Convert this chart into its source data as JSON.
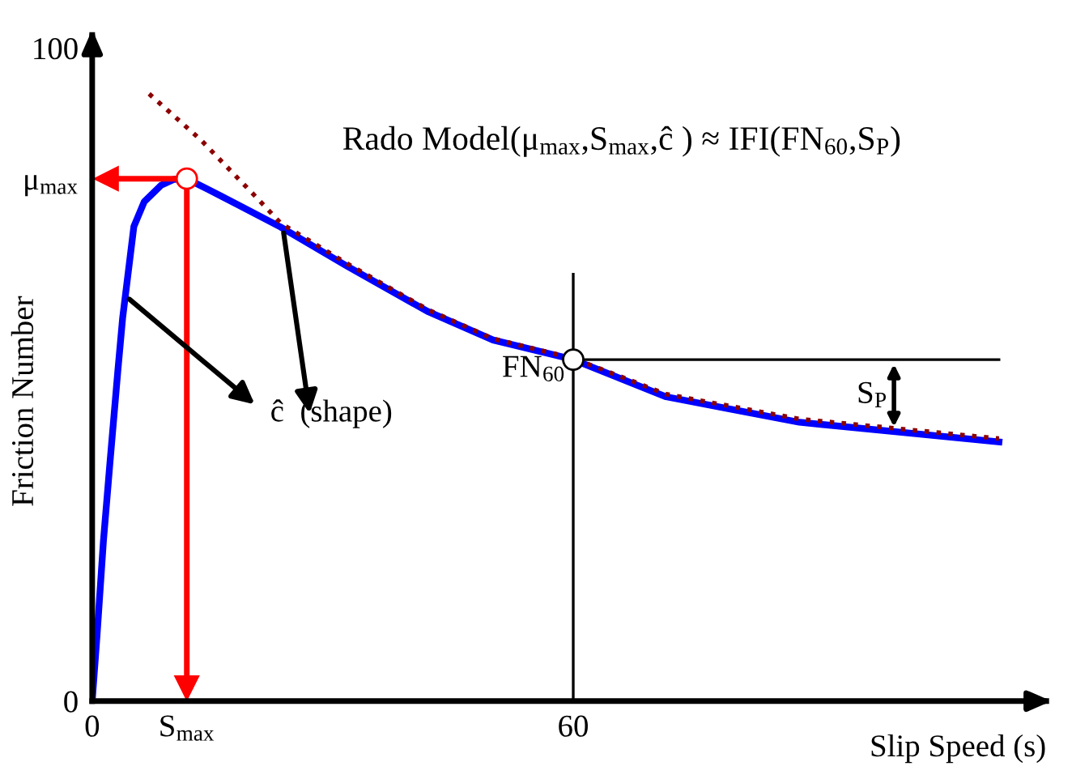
{
  "chart_data": {
    "type": "line",
    "title": "Rado Model(μ$_{max}$,S$_{max}$,ĉ ) ≈ IFI(FN$_{60}$,S$_{P}$)",
    "xlabel": "Slip Speed (s)",
    "ylabel": "Friction Number",
    "xlim": [
      0,
      119
    ],
    "ylim": [
      0,
      102
    ],
    "xticks": [
      0,
      {
        "value": 11.8,
        "label": "S$_{max}$"
      },
      60
    ],
    "yticks": [
      0,
      {
        "value": 80,
        "label": "μ$_{max}$"
      },
      100
    ],
    "marker": "none",
    "series": [
      {
        "color": "#0000ff",
        "line_style": "solid",
        "x": [
          0,
          0.6,
          1.4,
          2.2,
          3.2,
          3.8,
          5.2,
          6.5,
          8.6,
          10.2,
          11.8,
          16,
          23.5,
          31.8,
          41.8,
          50,
          60,
          71.6,
          88.2,
          100.7,
          113.1
        ],
        "values": [
          0,
          10,
          24.5,
          36.3,
          50.6,
          58.7,
          72.7,
          76.5,
          79,
          79.9,
          80,
          77.4,
          72.6,
          66.6,
          59.7,
          55.3,
          52.3,
          46.6,
          42.7,
          41.2,
          39.7
        ]
      },
      {
        "color": "#8b0000",
        "line_style": "dotted",
        "x": [
          7.1,
          13.5,
          20.2,
          23.5,
          31.8,
          41.8,
          50,
          60,
          71.6,
          88.2,
          100.7,
          113.1
        ],
        "values": [
          93,
          86,
          77.5,
          73.2,
          67,
          60,
          55.5,
          52.5,
          47,
          43.2,
          41.7,
          40.2
        ]
      }
    ],
    "ref_lines": [
      {
        "axis": "x",
        "value": 11.8,
        "color": "#ff0000"
      },
      {
        "axis": "y",
        "value": 80,
        "color": "#ff0000"
      },
      {
        "axis": "x",
        "value": 60,
        "color": "#000000"
      },
      {
        "axis": "y",
        "value": 52.3,
        "color": "#000000"
      }
    ],
    "annotations": [
      {
        "text": "FN$_{60}$",
        "x": 60,
        "y": 52.3
      },
      {
        "text": "S$_{P}$",
        "x": 100,
        "y": 52.3
      },
      {
        "text": "ĉ  (shape)",
        "x": 4.2,
        "y": 62
      }
    ]
  }
}
